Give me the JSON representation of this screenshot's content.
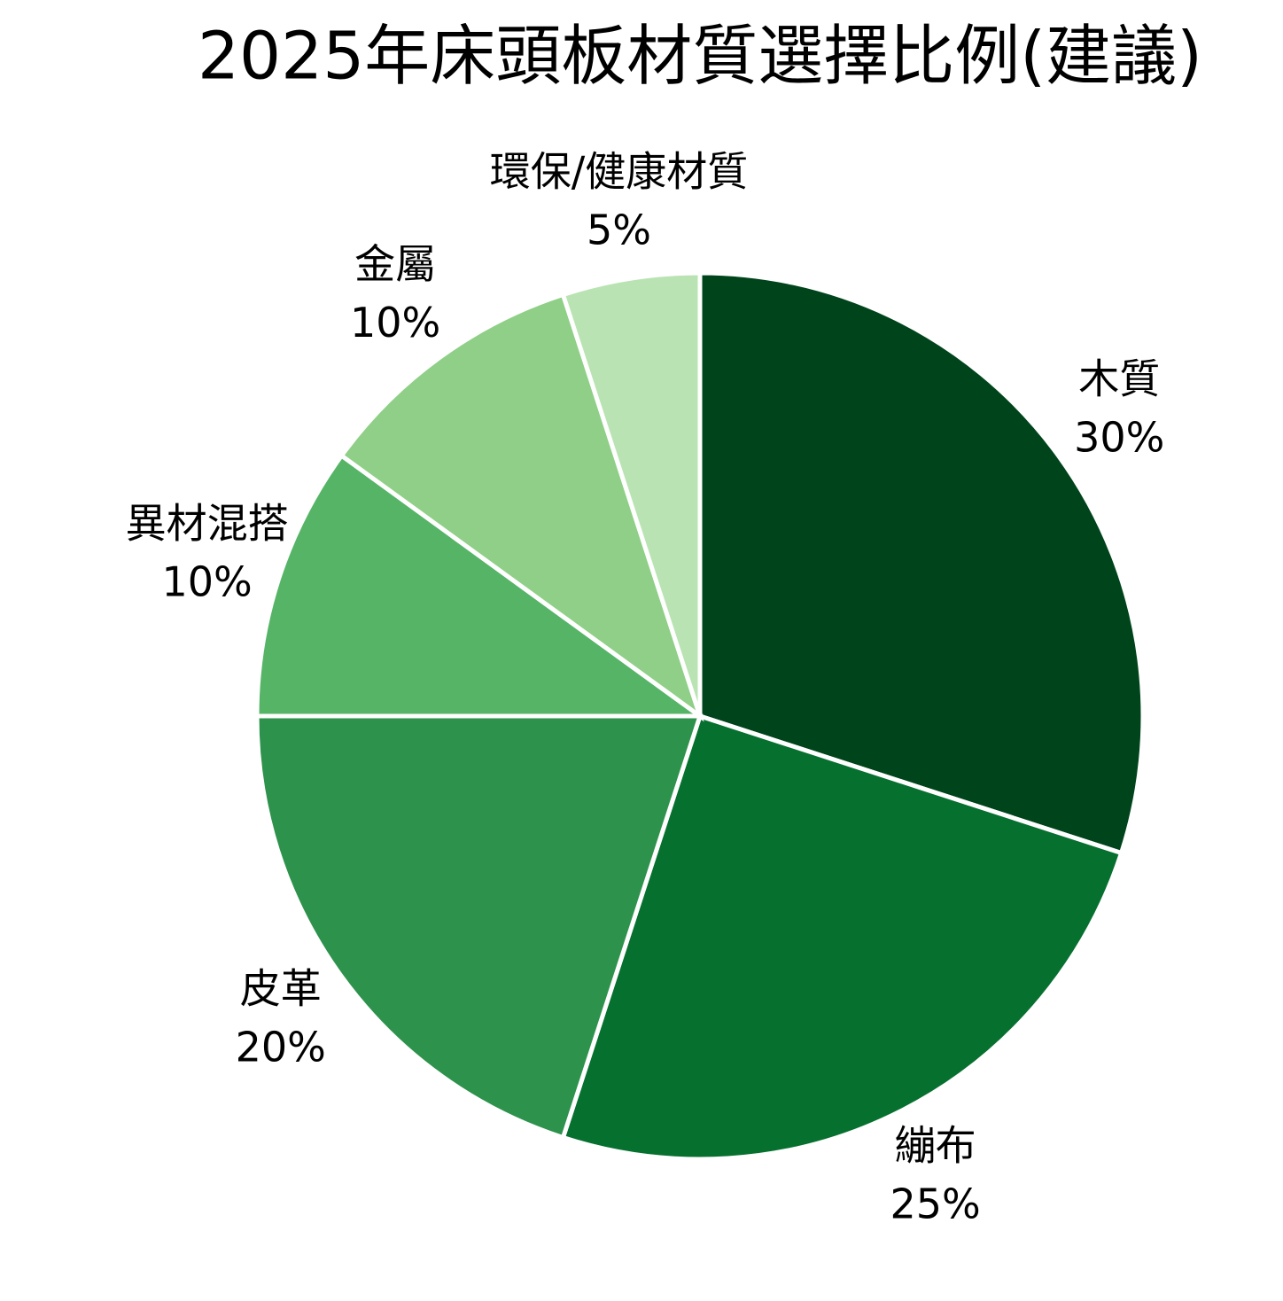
{
  "chart_data": {
    "type": "pie",
    "title": "2025年床頭板材質選擇比例(建議)",
    "categories": [
      "木質",
      "繃布",
      "皮革",
      "異材混搭",
      "金屬",
      "環保/健康材質"
    ],
    "values": [
      30,
      25,
      20,
      10,
      10,
      5
    ],
    "value_labels": [
      "30%",
      "25%",
      "20%",
      "10%",
      "10%",
      "5%"
    ],
    "colors": [
      "#00441b",
      "#06702f",
      "#2d924b",
      "#56b467",
      "#8fcf87",
      "#b9e3b2"
    ]
  }
}
